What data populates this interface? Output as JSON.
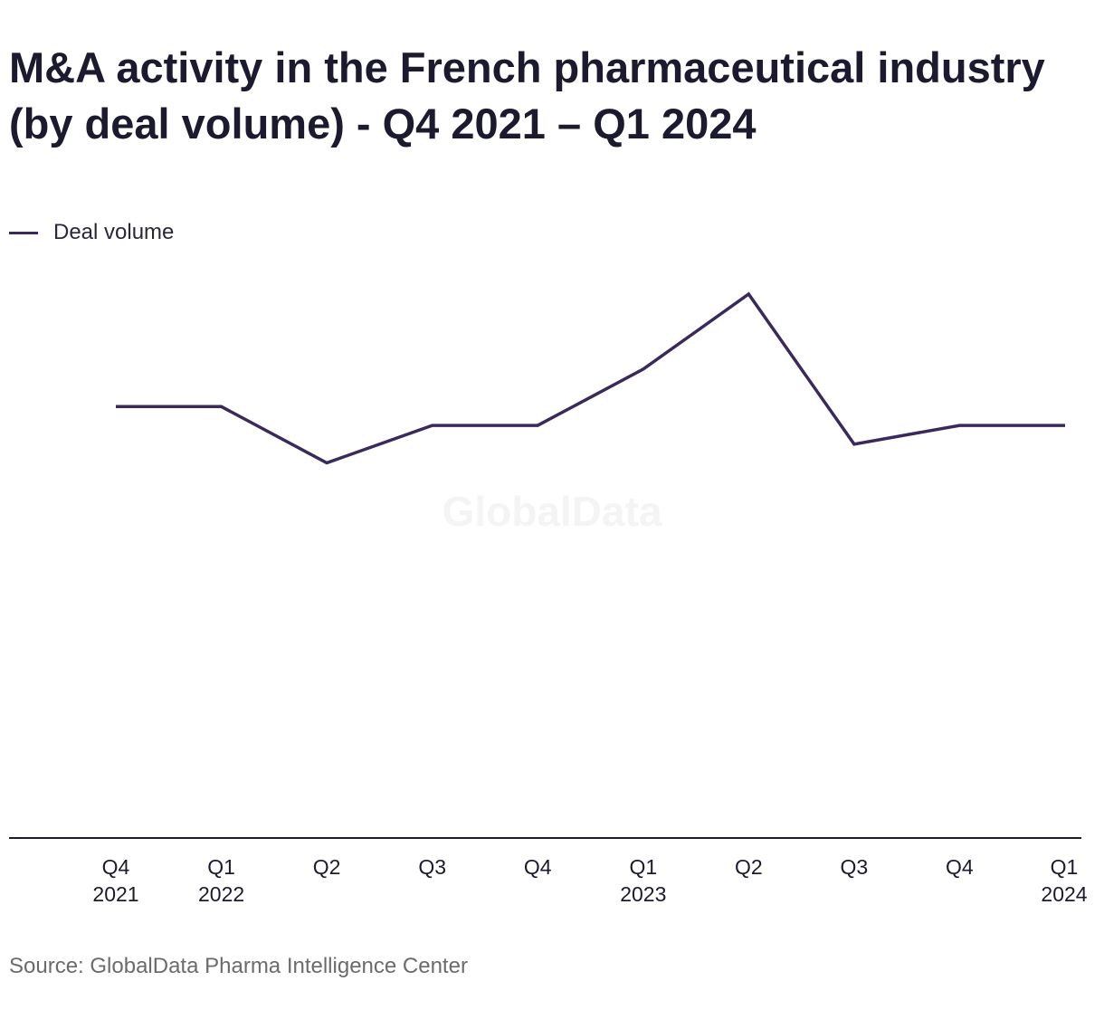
{
  "title": "M&A activity in the French pharmaceutical industry (by deal volume) - Q4 2021 – Q1 2024",
  "legend": {
    "label": "Deal volume"
  },
  "watermark": "GlobalData",
  "source": "Source: GlobalData Pharma Intelligence Center",
  "colors": {
    "series": "#3a2a5c",
    "axis": "#1b1a2e",
    "text": "#1b1a2e",
    "source": "#6b6b6b",
    "watermark": "#f4f4f4"
  },
  "chart_data": {
    "type": "line",
    "title": "M&A activity in the French pharmaceutical industry (by deal volume) - Q4 2021 – Q1 2024",
    "categories": [
      [
        "Q4",
        "2021"
      ],
      [
        "Q1",
        "2022"
      ],
      [
        "Q2"
      ],
      [
        "Q3"
      ],
      [
        "Q4"
      ],
      [
        "Q1",
        "2023"
      ],
      [
        "Q2"
      ],
      [
        "Q3"
      ],
      [
        "Q4"
      ],
      [
        "Q1",
        "2024"
      ]
    ],
    "series": [
      {
        "name": "Deal volume",
        "values": [
          7,
          7,
          4,
          6,
          6,
          9,
          13,
          5,
          6,
          6
        ]
      }
    ],
    "ylim": [
      -9,
      20
    ],
    "grid": false,
    "legend_position": "top-left",
    "y_axis_labels": false
  }
}
